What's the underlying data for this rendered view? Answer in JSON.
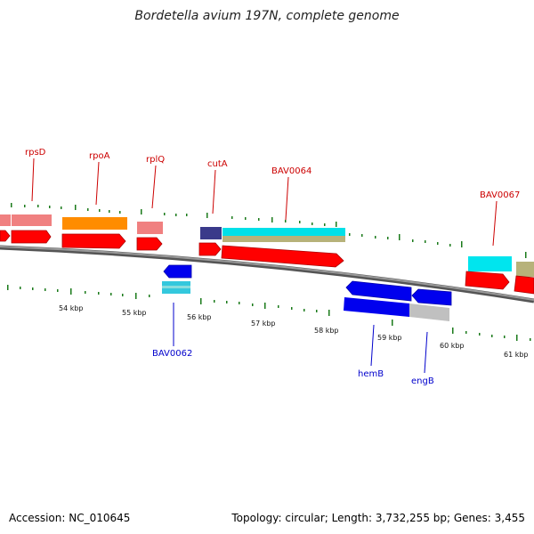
{
  "title": "Bordetella avium 197N, complete genome",
  "footer": {
    "accession": "Accession: NC_010645",
    "topology": "Topology: circular; Length: 3,732,255 bp; Genes: 3,455"
  },
  "colors": {
    "forward_label": "#cc0000",
    "reverse_label": "#0000cc",
    "backbone": "#888888",
    "tick": "#1a7a1a"
  },
  "kbp_ticks": [
    "54 kbp",
    "55 kbp",
    "56 kbp",
    "57 kbp",
    "58 kbp",
    "59 kbp",
    "60 kbp",
    "61 kbp"
  ],
  "forward_genes": [
    "rpsD",
    "rpoA",
    "rplQ",
    "cutA",
    "BAV0064",
    "BAV0067"
  ],
  "reverse_genes": [
    "BAV0062",
    "hemB",
    "engB"
  ]
}
